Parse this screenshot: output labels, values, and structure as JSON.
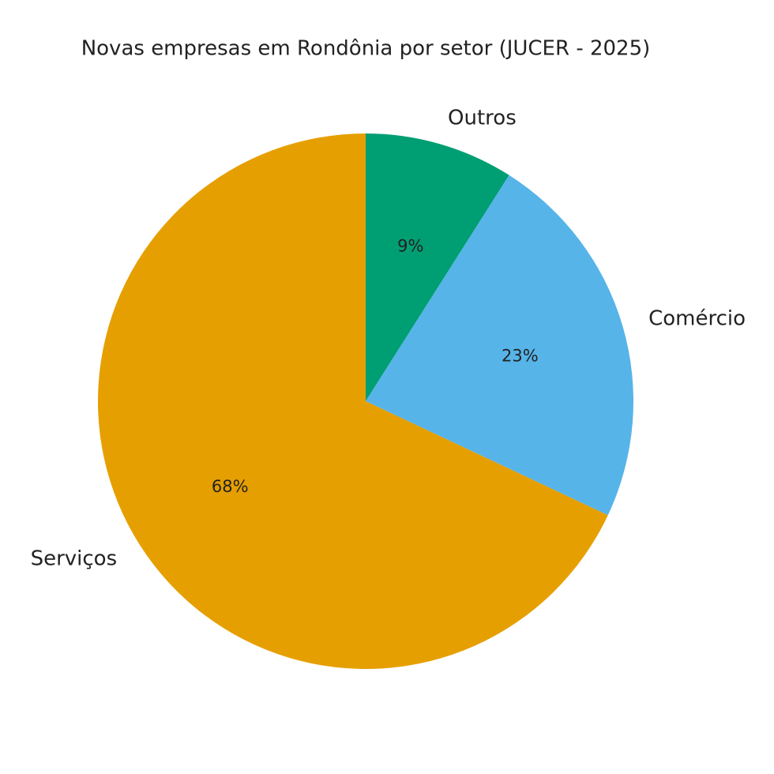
{
  "chart_data": {
    "type": "pie",
    "title": "Novas empresas em Rondônia por setor (JUCER - 2025)",
    "categories": [
      "Outros",
      "Comércio",
      "Serviços"
    ],
    "values": [
      9,
      23,
      68
    ],
    "value_labels": [
      "9%",
      "23%",
      "68%"
    ],
    "colors": [
      "#009e73",
      "#56b4e9",
      "#e69f00"
    ],
    "start_angle": 90,
    "direction": "clockwise"
  }
}
